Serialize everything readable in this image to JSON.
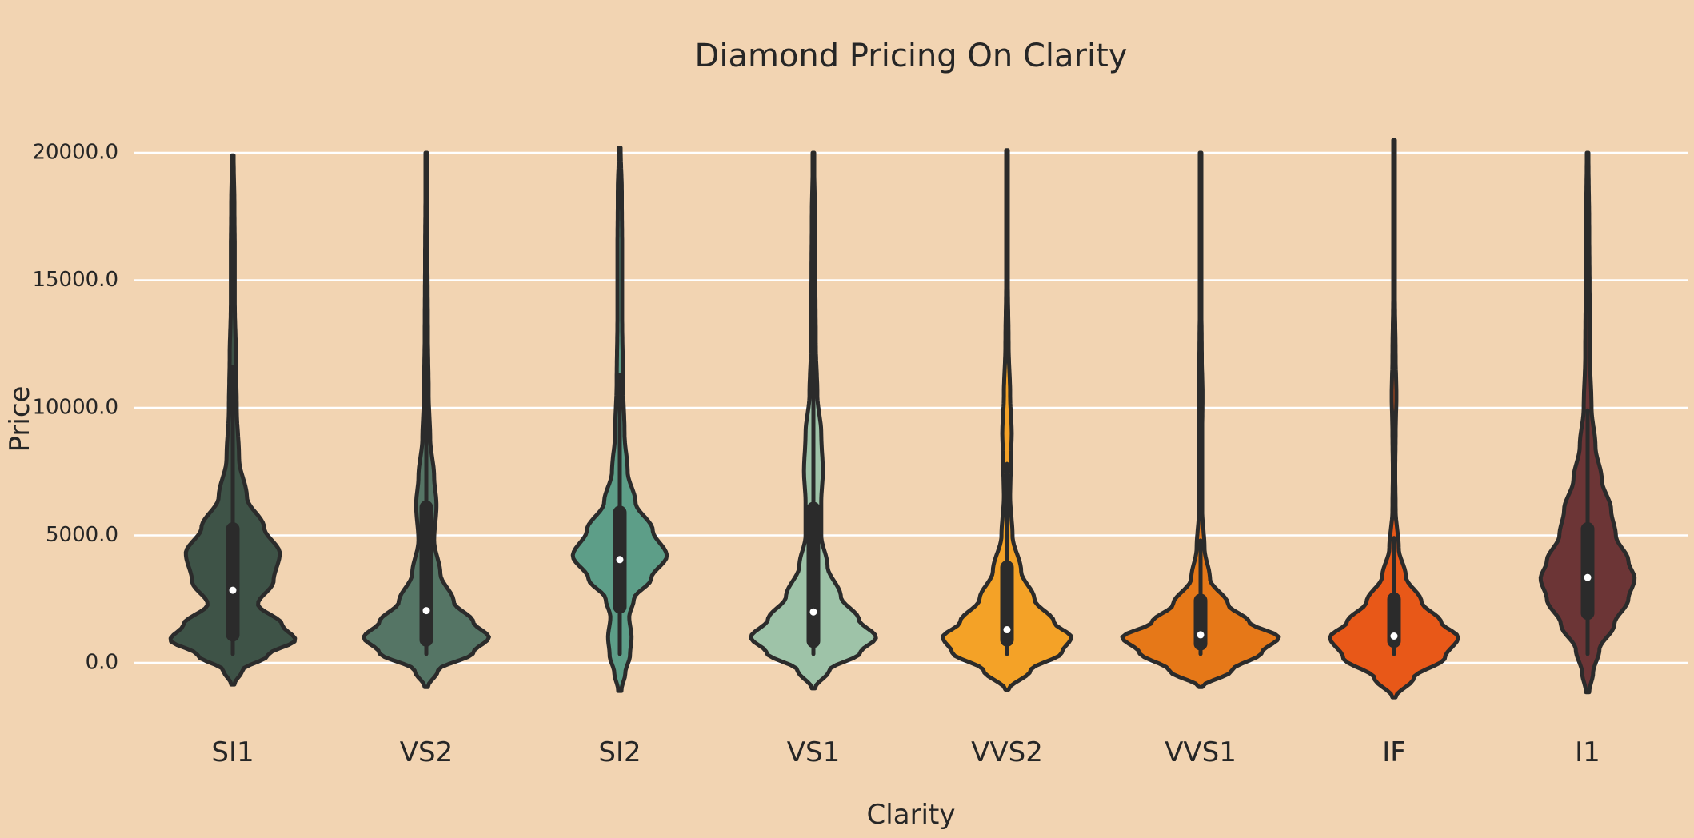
{
  "chart_data": {
    "type": "violin",
    "title": "Diamond Pricing On Clarity",
    "xlabel": "Clarity",
    "ylabel": "Price",
    "ylim": [
      -2000,
      22500
    ],
    "yticks": [
      0,
      5000,
      10000,
      15000,
      20000
    ],
    "ytick_labels": [
      "0.0",
      "5000.0",
      "10000.0",
      "15000.0",
      "20000.0"
    ],
    "grid": "horizontal",
    "categories": [
      "SI1",
      "VS2",
      "SI2",
      "VS1",
      "VVS2",
      "VVS1",
      "IF",
      "I1"
    ],
    "series": [
      {
        "category": "SI1",
        "color": "#3e5347",
        "min": 350,
        "q1": 1100,
        "median": 2850,
        "q3": 5250,
        "max": 11600,
        "density_range": [
          -850,
          19900
        ],
        "profile": [
          [
            -850,
            0.02
          ],
          [
            -300,
            0.12
          ],
          [
            300,
            0.45
          ],
          [
            900,
            0.8
          ],
          [
            1500,
            0.63
          ],
          [
            2300,
            0.32
          ],
          [
            3200,
            0.52
          ],
          [
            4300,
            0.6
          ],
          [
            5300,
            0.4
          ],
          [
            6500,
            0.18
          ],
          [
            8000,
            0.08
          ],
          [
            10000,
            0.05
          ],
          [
            12000,
            0.04
          ],
          [
            14000,
            0.025
          ],
          [
            16000,
            0.025
          ],
          [
            18000,
            0.02
          ],
          [
            19900,
            0.01
          ]
        ]
      },
      {
        "category": "VS2",
        "color": "#557565",
        "min": 350,
        "q1": 900,
        "median": 2050,
        "q3": 6100,
        "max": 13900,
        "density_range": [
          -950,
          20000
        ],
        "profile": [
          [
            -950,
            0.02
          ],
          [
            -300,
            0.15
          ],
          [
            400,
            0.6
          ],
          [
            1000,
            0.8
          ],
          [
            1600,
            0.6
          ],
          [
            2400,
            0.35
          ],
          [
            3500,
            0.18
          ],
          [
            4800,
            0.1
          ],
          [
            6200,
            0.13
          ],
          [
            7300,
            0.1
          ],
          [
            8800,
            0.05
          ],
          [
            10500,
            0.03
          ],
          [
            13000,
            0.02
          ],
          [
            16000,
            0.015
          ],
          [
            18500,
            0.01
          ],
          [
            20000,
            0.005
          ]
        ]
      },
      {
        "category": "SI2",
        "color": "#5d9e88",
        "min": 350,
        "q1": 2200,
        "median": 4050,
        "q3": 5900,
        "max": 11300,
        "density_range": [
          -1100,
          20200
        ],
        "profile": [
          [
            -1100,
            0.02
          ],
          [
            -400,
            0.07
          ],
          [
            300,
            0.13
          ],
          [
            1000,
            0.15
          ],
          [
            1800,
            0.12
          ],
          [
            2500,
            0.18
          ],
          [
            3300,
            0.4
          ],
          [
            4200,
            0.6
          ],
          [
            5200,
            0.42
          ],
          [
            6300,
            0.2
          ],
          [
            7500,
            0.1
          ],
          [
            9000,
            0.06
          ],
          [
            11000,
            0.04
          ],
          [
            13500,
            0.03
          ],
          [
            16000,
            0.03
          ],
          [
            18500,
            0.025
          ],
          [
            20200,
            0.01
          ]
        ]
      },
      {
        "category": "VS1",
        "color": "#9ec3a8",
        "min": 350,
        "q1": 850,
        "median": 2000,
        "q3": 6050,
        "max": 17400,
        "density_range": [
          -1000,
          20000
        ],
        "profile": [
          [
            -1000,
            0.02
          ],
          [
            -300,
            0.2
          ],
          [
            400,
            0.6
          ],
          [
            1000,
            0.8
          ],
          [
            1700,
            0.58
          ],
          [
            2600,
            0.35
          ],
          [
            3800,
            0.18
          ],
          [
            5000,
            0.1
          ],
          [
            6300,
            0.1
          ],
          [
            7500,
            0.12
          ],
          [
            9000,
            0.1
          ],
          [
            10500,
            0.05
          ],
          [
            12500,
            0.03
          ],
          [
            15000,
            0.025
          ],
          [
            17500,
            0.02
          ],
          [
            20000,
            0.005
          ]
        ]
      },
      {
        "category": "VVS2",
        "color": "#f4a227",
        "min": 350,
        "q1": 900,
        "median": 1300,
        "q3": 3750,
        "max": 7800,
        "density_range": [
          -1050,
          20100
        ],
        "profile": [
          [
            -1050,
            0.02
          ],
          [
            -300,
            0.3
          ],
          [
            400,
            0.7
          ],
          [
            1000,
            0.82
          ],
          [
            1600,
            0.6
          ],
          [
            2500,
            0.35
          ],
          [
            3600,
            0.18
          ],
          [
            5000,
            0.07
          ],
          [
            6500,
            0.04
          ],
          [
            8000,
            0.05
          ],
          [
            9000,
            0.06
          ],
          [
            10500,
            0.04
          ],
          [
            12500,
            0.02
          ],
          [
            15000,
            0.01
          ],
          [
            17500,
            0.008
          ],
          [
            20100,
            0.004
          ]
        ]
      },
      {
        "category": "VVS1",
        "color": "#e67818",
        "min": 350,
        "q1": 750,
        "median": 1100,
        "q3": 2450,
        "max": 4800,
        "density_range": [
          -950,
          20000
        ],
        "profile": [
          [
            -950,
            0.02
          ],
          [
            -300,
            0.4
          ],
          [
            400,
            0.78
          ],
          [
            1000,
            1.0
          ],
          [
            1600,
            0.62
          ],
          [
            2300,
            0.35
          ],
          [
            3300,
            0.12
          ],
          [
            4500,
            0.05
          ],
          [
            6000,
            0.02
          ],
          [
            7500,
            0.02
          ],
          [
            9000,
            0.02
          ],
          [
            10500,
            0.025
          ],
          [
            12000,
            0.015
          ],
          [
            14500,
            0.008
          ],
          [
            17000,
            0.006
          ],
          [
            20000,
            0.003
          ]
        ]
      },
      {
        "category": "IF",
        "color": "#e85818",
        "min": 350,
        "q1": 850,
        "median": 1050,
        "q3": 2500,
        "max": 4900,
        "density_range": [
          -1350,
          20500
        ],
        "profile": [
          [
            -1350,
            0.02
          ],
          [
            -600,
            0.25
          ],
          [
            200,
            0.65
          ],
          [
            1000,
            0.82
          ],
          [
            1600,
            0.6
          ],
          [
            2400,
            0.35
          ],
          [
            3400,
            0.15
          ],
          [
            4500,
            0.06
          ],
          [
            6000,
            0.02
          ],
          [
            7500,
            0.015
          ],
          [
            9000,
            0.02
          ],
          [
            10500,
            0.03
          ],
          [
            12000,
            0.02
          ],
          [
            14500,
            0.01
          ],
          [
            17500,
            0.006
          ],
          [
            20500,
            0.003
          ]
        ]
      },
      {
        "category": "I1",
        "color": "#6c3536",
        "min": 350,
        "q1": 1950,
        "median": 3350,
        "q3": 5250,
        "max": 9900,
        "density_range": [
          -1150,
          20000
        ],
        "profile": [
          [
            -1150,
            0.02
          ],
          [
            -400,
            0.07
          ],
          [
            500,
            0.15
          ],
          [
            1500,
            0.34
          ],
          [
            2500,
            0.52
          ],
          [
            3300,
            0.6
          ],
          [
            4000,
            0.52
          ],
          [
            5000,
            0.36
          ],
          [
            6000,
            0.3
          ],
          [
            7200,
            0.18
          ],
          [
            8500,
            0.1
          ],
          [
            10000,
            0.05
          ],
          [
            12000,
            0.03
          ],
          [
            14500,
            0.025
          ],
          [
            17000,
            0.02
          ],
          [
            20000,
            0.01
          ]
        ]
      }
    ]
  }
}
